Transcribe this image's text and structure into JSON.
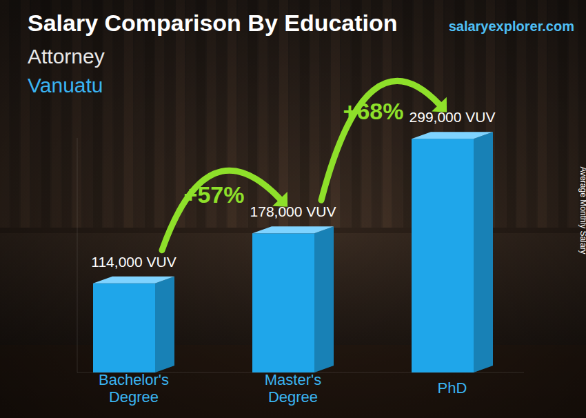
{
  "chart_data": {
    "type": "bar",
    "title": "Salary Comparison By Education",
    "subtitle": [
      "Attorney",
      "Vanuatu"
    ],
    "source": "salaryexplorer.com",
    "y_label": "Average Monthly Salary",
    "categories": [
      "Bachelor's Degree",
      "Master's Degree",
      "PhD"
    ],
    "values": [
      114000,
      178000,
      299000
    ],
    "value_labels": [
      "114,000 VUV",
      "178,000 VUV",
      "299,000 VUV"
    ],
    "annotations": [
      "+57%",
      "+68%"
    ],
    "color": "#1fa6ea",
    "ylim": [
      0,
      300000
    ],
    "grid": false,
    "data_labels": true,
    "tick_labels": "x"
  }
}
